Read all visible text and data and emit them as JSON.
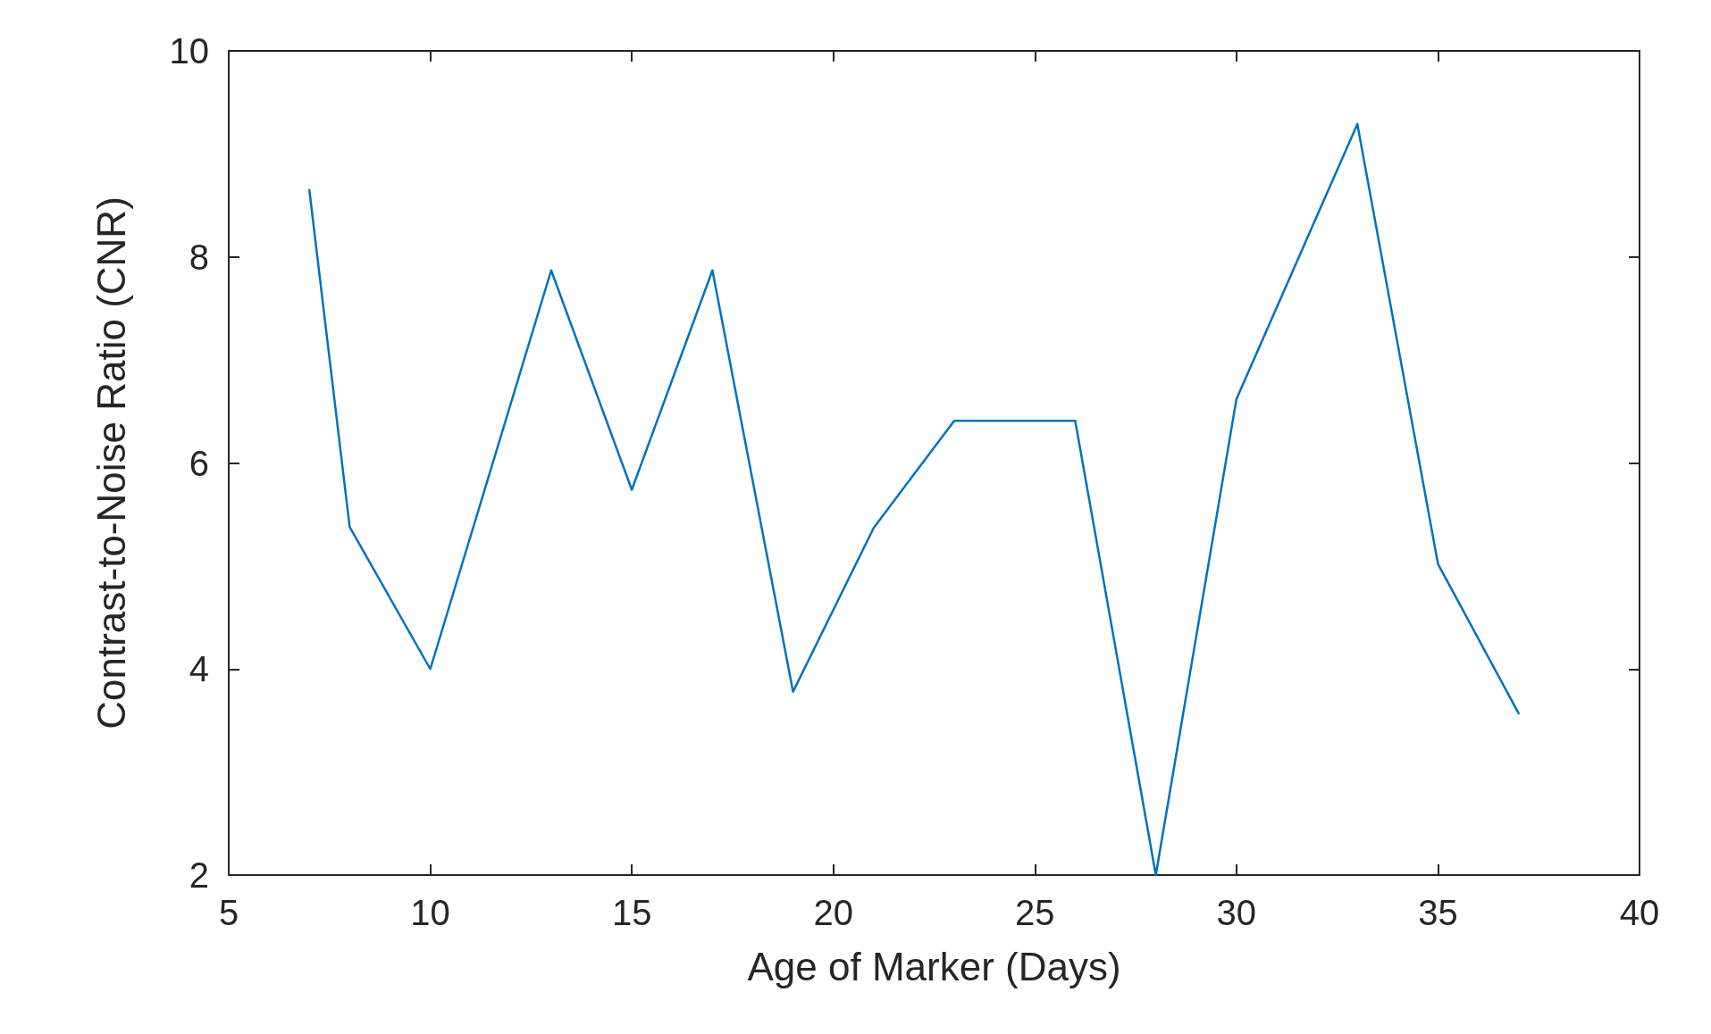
{
  "chart_data": {
    "type": "line",
    "xlabel": "Age of Marker (Days)",
    "ylabel": "Contrast-to-Noise Ratio (CNR)",
    "x": [
      7,
      8,
      10,
      13,
      15,
      17,
      19,
      21,
      23,
      26,
      28,
      30,
      33,
      35,
      37
    ],
    "series": [
      {
        "color": "#0072bd",
        "values": [
          8.65,
          5.38,
          4.0,
          7.87,
          5.74,
          7.87,
          3.78,
          5.37,
          6.41,
          6.41,
          2.0,
          6.62,
          9.29,
          5.02,
          3.57
        ]
      }
    ],
    "xlim": [
      5,
      40
    ],
    "xticks": [
      5,
      10,
      15,
      20,
      25,
      30,
      35,
      40
    ],
    "ylim": [
      2,
      10
    ],
    "yticks": [
      2,
      4,
      6,
      8,
      10
    ],
    "grid": false,
    "marker": "none",
    "line_style": "solid"
  }
}
